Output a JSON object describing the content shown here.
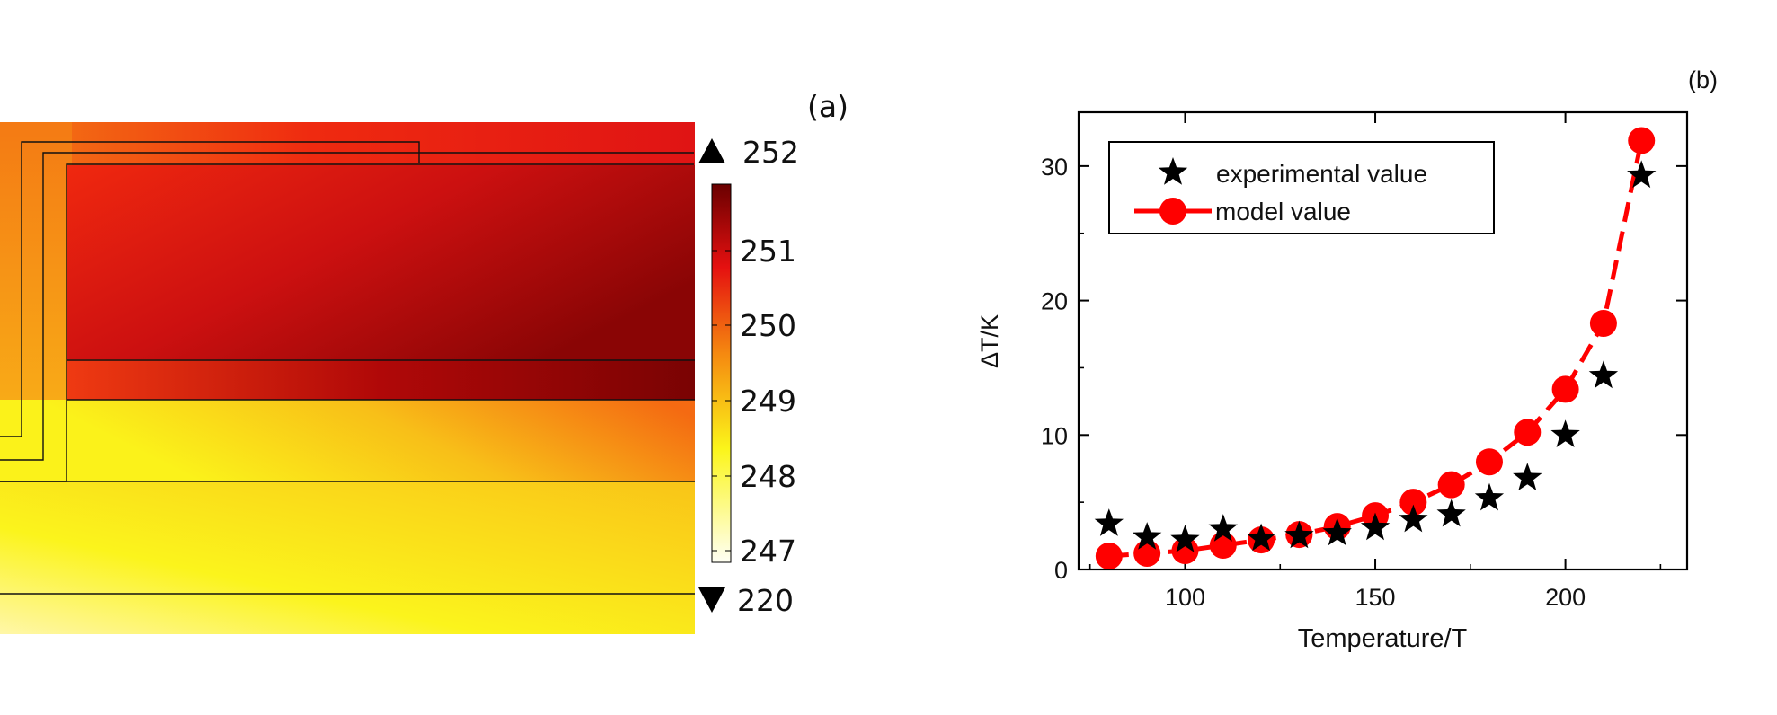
{
  "panel_a": {
    "label": "(a)",
    "colorbar": {
      "max_marker": "252",
      "min_marker": "220",
      "ticks": [
        "251",
        "250",
        "249",
        "248",
        "247"
      ],
      "colors": {
        "dark": "#7a0000",
        "red": "#e51010",
        "orange": "#f58a10",
        "yellow": "#fbf51a",
        "white": "#fffff4"
      }
    }
  },
  "panel_b": {
    "label": "(b)"
  },
  "chart_data": {
    "type": "scatter",
    "xlabel": "Temperature/T",
    "ylabel": "ΔT/K",
    "xlim": [
      72,
      232
    ],
    "ylim": [
      0,
      34
    ],
    "xticks": [
      100,
      150,
      200
    ],
    "yticks": [
      0,
      10,
      20,
      30
    ],
    "legend_position": "top-left",
    "grid": false,
    "series": [
      {
        "name": "experimental value",
        "marker": "star",
        "color": "#000000",
        "x": [
          80,
          90,
          100,
          110,
          120,
          130,
          140,
          150,
          160,
          170,
          180,
          190,
          200,
          210,
          220
        ],
        "y": [
          3.4,
          2.4,
          2.2,
          3.0,
          2.3,
          2.5,
          2.7,
          3.1,
          3.7,
          4.1,
          5.3,
          6.8,
          10.0,
          14.4,
          29.3
        ]
      },
      {
        "name": "model value",
        "marker": "circle",
        "line": "dashed",
        "color": "#ff0000",
        "x": [
          80,
          90,
          100,
          110,
          120,
          130,
          140,
          150,
          160,
          170,
          180,
          190,
          200,
          210,
          220
        ],
        "y": [
          1.0,
          1.2,
          1.4,
          1.8,
          2.2,
          2.6,
          3.2,
          4.0,
          5.0,
          6.3,
          8.0,
          10.2,
          13.4,
          18.3,
          31.9
        ]
      }
    ]
  }
}
